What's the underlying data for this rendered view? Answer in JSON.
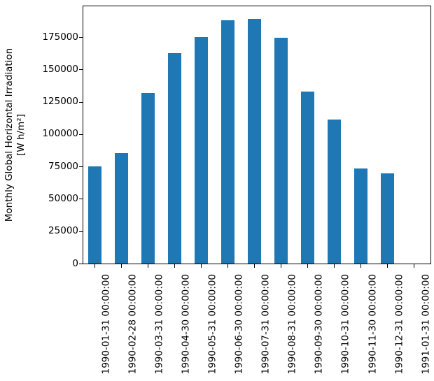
{
  "chart_data": {
    "type": "bar",
    "title": "",
    "xlabel": "",
    "ylabel_line1": "Monthly Global Horizontal Irradiation",
    "ylabel_line2": "[W h/m²]",
    "categories": [
      "1990-01-31 00:00:00",
      "1990-02-28 00:00:00",
      "1990-03-31 00:00:00",
      "1990-04-30 00:00:00",
      "1990-05-31 00:00:00",
      "1990-06-30 00:00:00",
      "1990-07-31 00:00:00",
      "1990-08-31 00:00:00",
      "1990-09-30 00:00:00",
      "1990-10-31 00:00:00",
      "1990-11-30 00:00:00",
      "1990-12-31 00:00:00",
      "1991-01-31 00:00:00"
    ],
    "values": [
      75000,
      85400,
      131800,
      162700,
      174900,
      187900,
      189300,
      174500,
      133000,
      111400,
      73400,
      69500,
      0
    ],
    "yticks": [
      {
        "label": "0",
        "value": 0
      },
      {
        "label": "25000",
        "value": 25000
      },
      {
        "label": "50000",
        "value": 50000
      },
      {
        "label": "75000",
        "value": 75000
      },
      {
        "label": "100000",
        "value": 100000
      },
      {
        "label": "125000",
        "value": 125000
      },
      {
        "label": "150000",
        "value": 150000
      },
      {
        "label": "175000",
        "value": 175000
      }
    ],
    "ylim": [
      0,
      198800
    ],
    "bar_color": "#1f77b4",
    "legend": null,
    "grid": false
  }
}
